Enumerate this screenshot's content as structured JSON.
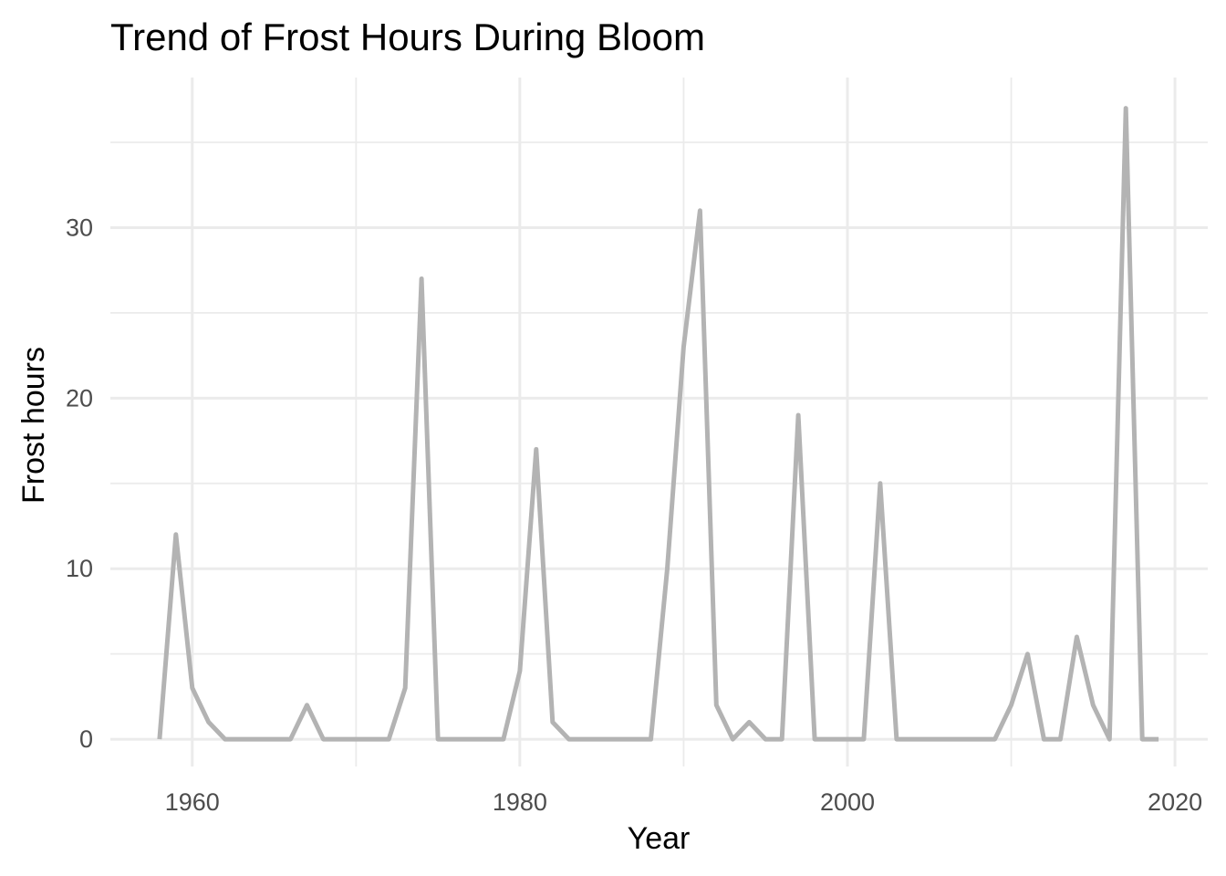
{
  "chart_data": {
    "type": "line",
    "title": "Trend of Frost Hours During Bloom",
    "xlabel": "Year",
    "ylabel": "Frost hours",
    "xlim": [
      1955,
      2022
    ],
    "ylim": [
      -1.6,
      38.8
    ],
    "x_major_ticks": [
      1960,
      1980,
      2000,
      2020
    ],
    "x_minor_ticks": [
      1970,
      1990,
      2010
    ],
    "y_major_ticks": [
      0,
      10,
      20,
      30
    ],
    "y_minor_ticks": [
      5,
      15,
      25,
      35
    ],
    "x_tick_labels": [
      "1960",
      "1980",
      "2000",
      "2020"
    ],
    "y_tick_labels": [
      "0",
      "10",
      "20",
      "30"
    ],
    "grid": true,
    "legend": "none",
    "colors": {
      "line": "#b3b3b3",
      "grid": "#ebebeb"
    },
    "series": [
      {
        "x": [
          1958,
          1959,
          1960,
          1961,
          1962,
          1963,
          1964,
          1965,
          1966,
          1967,
          1968,
          1969,
          1970,
          1971,
          1972,
          1973,
          1974,
          1975,
          1976,
          1977,
          1978,
          1979,
          1980,
          1981,
          1982,
          1983,
          1984,
          1985,
          1986,
          1987,
          1988,
          1989,
          1990,
          1991,
          1992,
          1993,
          1994,
          1995,
          1996,
          1997,
          1998,
          1999,
          2000,
          2001,
          2002,
          2003,
          2004,
          2005,
          2006,
          2007,
          2008,
          2009,
          2010,
          2011,
          2012,
          2013,
          2014,
          2015,
          2016,
          2017,
          2018,
          2019
        ],
        "values": [
          0,
          12,
          3,
          1,
          0,
          0,
          0,
          0,
          0,
          2,
          0,
          0,
          0,
          0,
          0,
          3,
          27,
          0,
          0,
          0,
          0,
          0,
          4,
          17,
          1,
          0,
          0,
          0,
          0,
          0,
          0,
          10,
          23,
          31,
          2,
          0,
          1,
          0,
          0,
          19,
          0,
          0,
          0,
          0,
          15,
          0,
          0,
          0,
          0,
          0,
          0,
          0,
          2,
          5,
          0,
          0,
          6,
          2,
          0,
          37,
          0,
          0
        ]
      }
    ]
  }
}
